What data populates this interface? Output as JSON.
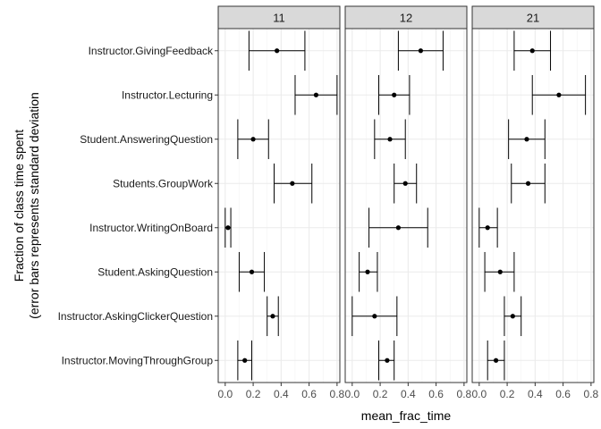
{
  "chart_data": {
    "type": "scatter",
    "subtype": "dot-with-error-bars, faceted",
    "ylabel_lines": [
      "Fraction of class time spent",
      "(error bars represents standard deviation"
    ],
    "xlabel": "mean_frac_time",
    "xlim": [
      -0.05,
      0.82
    ],
    "xticks": [
      0,
      0.2,
      0.4,
      0.6,
      0.8
    ],
    "xtick_labels": [
      "0.0",
      "0.2",
      "0.4",
      "0.6",
      "0.8"
    ],
    "grid": true,
    "theme": "bw",
    "categories": [
      "Instructor.GivingFeedback",
      "Instructor.Lecturing",
      "Student.AnsweringQuestion",
      "Students.GroupWork",
      "Instructor.WritingOnBoard",
      "Student.AskingQuestion",
      "Instructor.AskingClickerQuestion",
      "Instructor.MovingThroughGroup"
    ],
    "facets": [
      {
        "label": "11",
        "mean": [
          0.37,
          0.65,
          0.2,
          0.48,
          0.02,
          0.19,
          0.34,
          0.14
        ],
        "lower": [
          0.17,
          0.5,
          0.09,
          0.35,
          0.0,
          0.1,
          0.3,
          0.09
        ],
        "upper": [
          0.57,
          0.8,
          0.31,
          0.62,
          0.04,
          0.28,
          0.38,
          0.19
        ]
      },
      {
        "label": "12",
        "mean": [
          0.49,
          0.3,
          0.27,
          0.38,
          0.33,
          0.11,
          0.16,
          0.25
        ],
        "lower": [
          0.33,
          0.19,
          0.16,
          0.3,
          0.12,
          0.05,
          0.0,
          0.19
        ],
        "upper": [
          0.65,
          0.41,
          0.38,
          0.46,
          0.54,
          0.18,
          0.32,
          0.3
        ]
      },
      {
        "label": "21",
        "mean": [
          0.38,
          0.57,
          0.34,
          0.35,
          0.06,
          0.15,
          0.24,
          0.12
        ],
        "lower": [
          0.25,
          0.38,
          0.21,
          0.23,
          0.0,
          0.04,
          0.18,
          0.06
        ],
        "upper": [
          0.51,
          0.76,
          0.47,
          0.47,
          0.13,
          0.25,
          0.3,
          0.18
        ]
      }
    ]
  }
}
